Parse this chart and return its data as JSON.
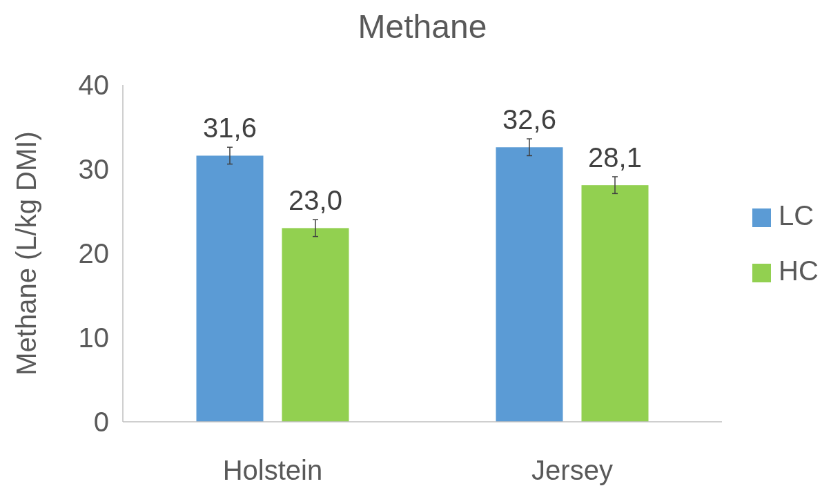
{
  "chart_data": {
    "type": "bar",
    "title": "Methane",
    "ylabel": "Methane (L/kg DMI)",
    "categories": [
      "Holstein",
      "Jersey"
    ],
    "series": [
      {
        "name": "LC",
        "color": "#5b9bd5",
        "values": [
          31.6,
          32.6
        ],
        "errors": [
          1.0,
          1.0
        ],
        "value_labels": [
          "31,6",
          "32,6"
        ]
      },
      {
        "name": "HC",
        "color": "#92d050",
        "values": [
          23.0,
          28.1
        ],
        "errors": [
          1.0,
          1.0
        ],
        "value_labels": [
          "23,0",
          "28,1"
        ]
      }
    ],
    "ylim": [
      0,
      40
    ],
    "yticks": [
      0,
      10,
      20,
      30,
      40
    ],
    "grid": false,
    "legend": "right"
  }
}
